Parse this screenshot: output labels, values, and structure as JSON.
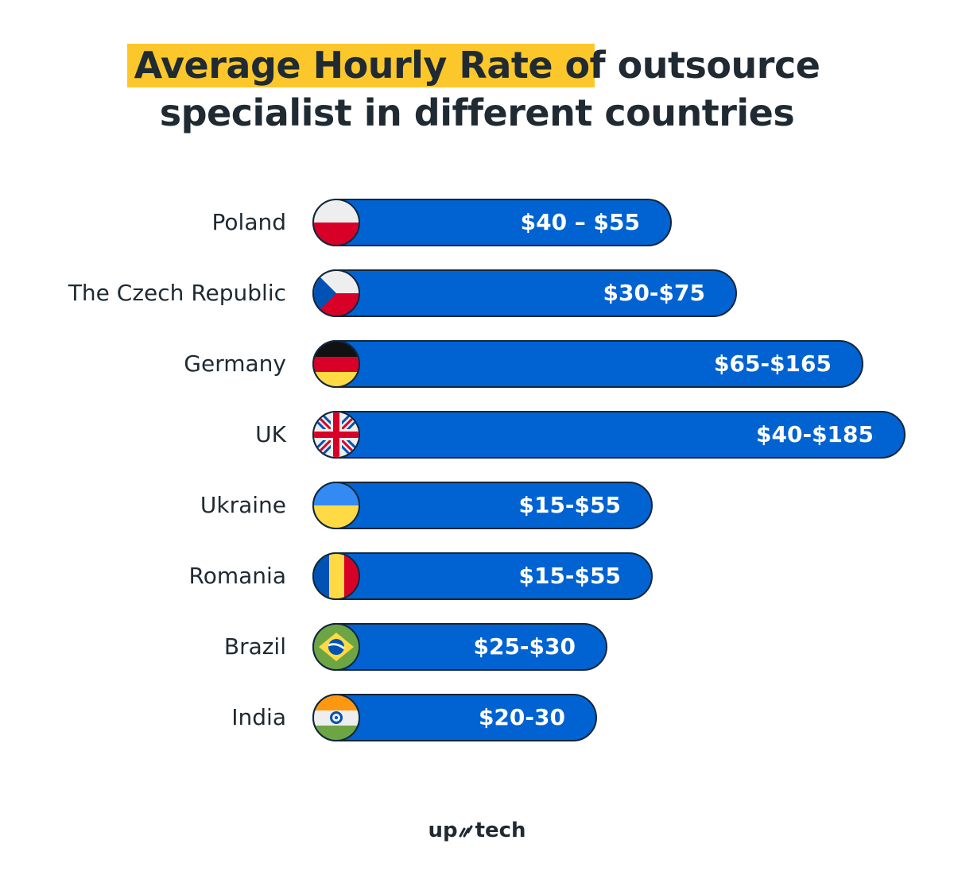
{
  "chart_data": {
    "type": "bar",
    "orientation": "horizontal",
    "title_highlight": "Average Hourly Rate of",
    "title_rest": " outsource",
    "title_line2": "specialist in different countries",
    "categories": [
      "Poland",
      "The Czech Republic",
      "Germany",
      "UK",
      "Ukraine",
      "Romania",
      "Brazil",
      "India"
    ],
    "value_labels": [
      "$40 – $55",
      "$30-$75",
      "$65-$165",
      "$40-$185",
      "$15-$55",
      "$15-$55",
      "$25-$30",
      "$20-30"
    ],
    "ranges_usd": [
      [
        40,
        55
      ],
      [
        30,
        75
      ],
      [
        65,
        165
      ],
      [
        40,
        185
      ],
      [
        15,
        55
      ],
      [
        15,
        55
      ],
      [
        25,
        30
      ],
      [
        20,
        30
      ]
    ],
    "flags": [
      "poland",
      "czech",
      "germany",
      "uk",
      "ukraine",
      "romania",
      "brazil",
      "india"
    ],
    "colors": {
      "bar": "#0063d1",
      "highlight": "#fcc72a",
      "text": "#1f2a33"
    }
  },
  "brand": {
    "logo": "upstech"
  }
}
